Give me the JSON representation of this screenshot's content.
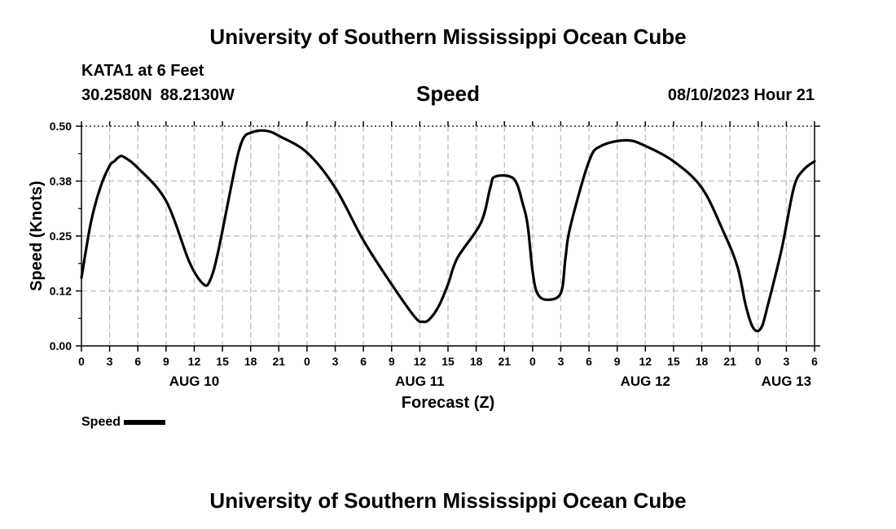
{
  "header": {
    "title": "University of Southern Mississippi Ocean Cube",
    "station": "KATA1 at 6 Feet",
    "latitude": "30.2580N",
    "longitude": "88.2130W",
    "datetime": "08/10/2023 Hour 21"
  },
  "footer": {
    "title": "University of Southern Mississippi Ocean Cube"
  },
  "legend": {
    "label": "Speed",
    "color": "#000000"
  },
  "chart_data": {
    "type": "line",
    "title": "Speed",
    "xlabel": "Forecast (Z)",
    "ylabel": "Speed (Knots)",
    "x_unit": "hours from 00Z Aug 10",
    "xlim": [
      0,
      78
    ],
    "ylim": [
      0,
      0.5
    ],
    "grid": true,
    "y_ticks": [
      0,
      0.125,
      0.25,
      0.375,
      0.5
    ],
    "y_tick_labels": [
      "0.00",
      "0.12",
      "0.25",
      "0.38",
      "0.50"
    ],
    "x_ticks": [
      0,
      3,
      6,
      9,
      12,
      15,
      18,
      21,
      24,
      27,
      30,
      33,
      36,
      39,
      42,
      45,
      48,
      51,
      54,
      57,
      60,
      63,
      66,
      69,
      72,
      75,
      78
    ],
    "x_tick_labels": [
      "0",
      "3",
      "6",
      "9",
      "12",
      "15",
      "18",
      "21",
      "0",
      "3",
      "6",
      "9",
      "12",
      "15",
      "18",
      "21",
      "0",
      "3",
      "6",
      "9",
      "12",
      "15",
      "18",
      "21",
      "0",
      "3",
      "6"
    ],
    "date_labels": [
      {
        "x": 12,
        "label": "AUG 10"
      },
      {
        "x": 36,
        "label": "AUG 11"
      },
      {
        "x": 60,
        "label": "AUG 12"
      },
      {
        "x": 75,
        "label": "AUG 13"
      }
    ],
    "series": [
      {
        "name": "Speed",
        "x": [
          0,
          1,
          2,
          3,
          3.5,
          4,
          4.5,
          6,
          9,
          11.5,
          13,
          13.7,
          14.5,
          16,
          16.7,
          17.3,
          18,
          19,
          20,
          21,
          24,
          27,
          30,
          33,
          35.5,
          36.3,
          37,
          38,
          39,
          40,
          42.5,
          43.5,
          44,
          46,
          47,
          47.5,
          48,
          48.5,
          49.5,
          51,
          51.5,
          52,
          54,
          55.3,
          58,
          60,
          63,
          66,
          68.3,
          69.8,
          70.7,
          71.5,
          72.3,
          73,
          74.5,
          75.8,
          76.8,
          78
        ],
        "values": [
          0.155,
          0.28,
          0.36,
          0.41,
          0.42,
          0.43,
          0.43,
          0.405,
          0.33,
          0.19,
          0.14,
          0.15,
          0.21,
          0.37,
          0.44,
          0.475,
          0.485,
          0.49,
          0.488,
          0.478,
          0.44,
          0.36,
          0.24,
          0.14,
          0.065,
          0.055,
          0.06,
          0.09,
          0.14,
          0.2,
          0.28,
          0.36,
          0.385,
          0.38,
          0.32,
          0.27,
          0.17,
          0.12,
          0.105,
          0.12,
          0.2,
          0.27,
          0.42,
          0.455,
          0.468,
          0.455,
          0.42,
          0.36,
          0.26,
          0.18,
          0.09,
          0.04,
          0.04,
          0.09,
          0.22,
          0.36,
          0.4,
          0.42
        ]
      }
    ]
  }
}
